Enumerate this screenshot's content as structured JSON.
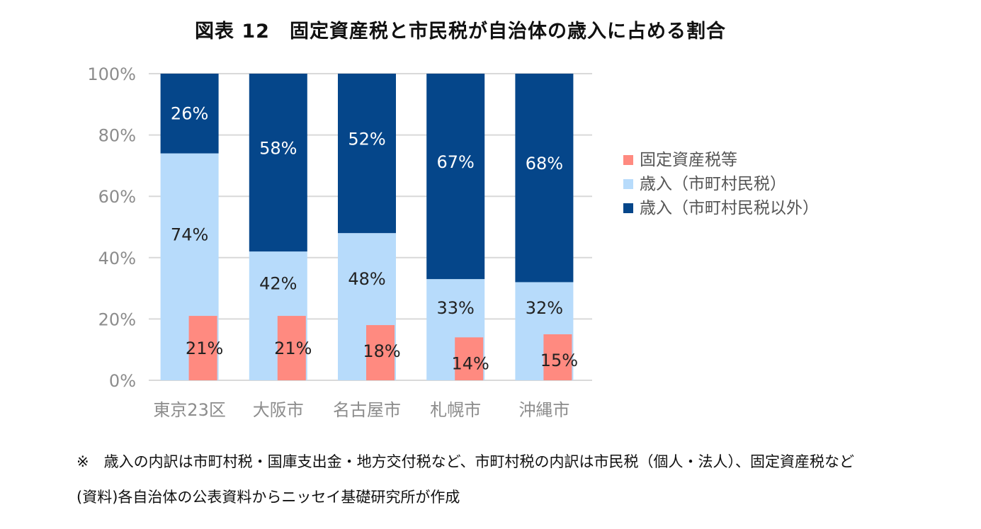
{
  "title": "図表 12　固定資産税と市民税が自治体の歳入に占める割合",
  "notes": {
    "note1": "※　歳入の内訳は市町村税・国庫支出金・地方交付税など、市町村税の内訳は市民税（個人・法人）、固定資産税など",
    "note2": "(資料)各自治体の公表資料からニッセイ基礎研究所が作成"
  },
  "chart_data": {
    "type": "bar",
    "categories": [
      "東京23区",
      "大阪市",
      "名古屋市",
      "札幌市",
      "沖縄市"
    ],
    "series": [
      {
        "name": "固定資産税等",
        "values": [
          21,
          21,
          18,
          14,
          15
        ],
        "labels": [
          "21%",
          "21%",
          "18%",
          "14%",
          "15%"
        ],
        "color": "#ff8a80"
      },
      {
        "name": "歳入（市町村民税）",
        "values": [
          74,
          42,
          48,
          33,
          32
        ],
        "labels": [
          "74%",
          "42%",
          "48%",
          "33%",
          "32%"
        ],
        "color": "#b7dbfb"
      },
      {
        "name": "歳入（市町村民税以外）",
        "values": [
          26,
          58,
          52,
          67,
          68
        ],
        "labels": [
          "26%",
          "58%",
          "52%",
          "67%",
          "68%"
        ],
        "color": "#05468a"
      }
    ],
    "stacked_series": [
      "歳入（市町村民税）",
      "歳入（市町村民税以外）"
    ],
    "overlay_series": "固定資産税等",
    "yticks": [
      "0%",
      "20%",
      "40%",
      "60%",
      "80%",
      "100%"
    ],
    "ylim": [
      0,
      100
    ],
    "grid": true,
    "legend": "right"
  }
}
